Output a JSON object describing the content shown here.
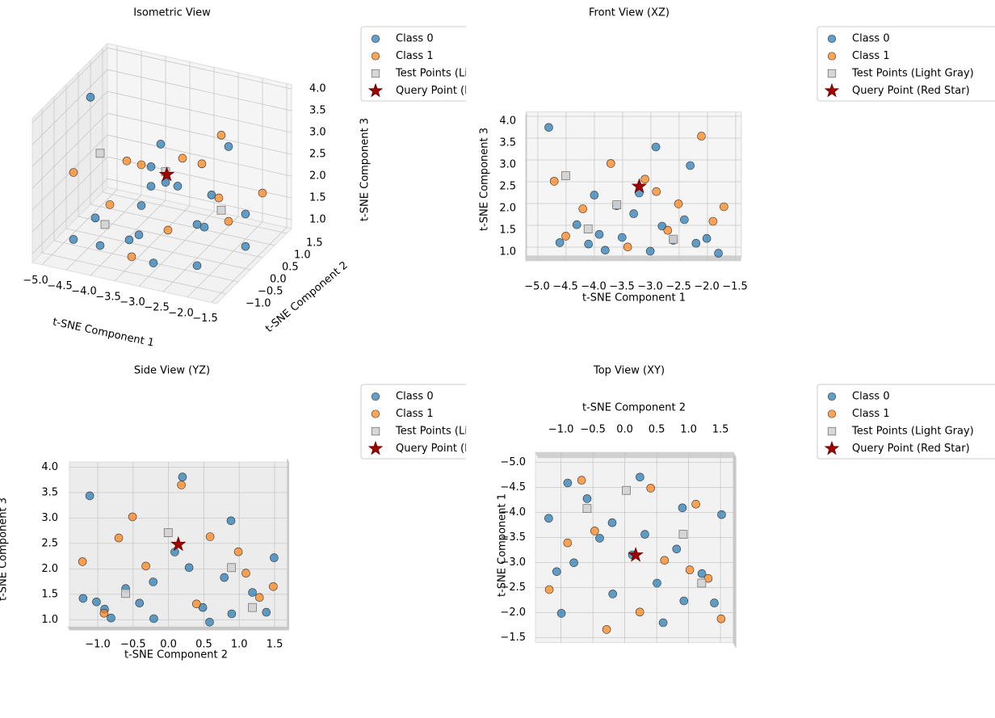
{
  "chart_data": {
    "type": "scatter3d",
    "xlabel": "t-SNE Component 1",
    "ylabel": "t-SNE Component 2",
    "zlabel": "t-SNE Component 3",
    "views": [
      {
        "title": "Isometric View"
      },
      {
        "title": "Front View (XZ)"
      },
      {
        "title": "Side View (YZ)"
      },
      {
        "title": "Top View (XY)"
      }
    ],
    "xlim": [
      -5.2,
      -1.4
    ],
    "ylim": [
      -1.4,
      1.7
    ],
    "zlim": [
      0.8,
      4.1
    ],
    "xticks": [
      {
        "value": -5,
        "label": "−5.0"
      },
      {
        "value": -4.5,
        "label": "−4.5"
      },
      {
        "value": -4,
        "label": "−4.0"
      },
      {
        "value": -3.5,
        "label": "−3.5"
      },
      {
        "value": -3,
        "label": "−3.0"
      },
      {
        "value": -2.5,
        "label": "−2.5"
      },
      {
        "value": -2,
        "label": "−2.0"
      },
      {
        "value": -1.5,
        "label": "−1.5"
      }
    ],
    "yticks": [
      {
        "value": -1,
        "label": "−1.0"
      },
      {
        "value": -0.5,
        "label": "−0.5"
      },
      {
        "value": 0,
        "label": "0.0"
      },
      0.5,
      {
        "value": 1,
        "label": "1.0"
      },
      1.5
    ],
    "zticks": [
      {
        "value": 1,
        "label": "1.0"
      },
      1.5,
      {
        "value": 2,
        "label": "2.0"
      },
      2.5,
      {
        "value": 3,
        "label": "3.0"
      },
      3.5,
      {
        "value": 4,
        "label": "4.0"
      }
    ],
    "grid": true,
    "series": [
      {
        "name": "Class 0",
        "color": "#1f77b4",
        "marker": "circle",
        "x": [
          -4.6,
          -4.3,
          -4.1,
          -3.9,
          -3.6,
          -3.5,
          -3.3,
          -3.2,
          -3.0,
          -2.8,
          -2.6,
          -2.4,
          -2.2,
          -2.0,
          -1.8,
          -4.8,
          -2.9,
          -4.0,
          -3.8,
          -2.3
        ],
        "y": [
          -0.9,
          -0.6,
          0.9,
          -1.2,
          0.3,
          -0.4,
          0.8,
          0.1,
          -0.8,
          1.2,
          0.5,
          -0.2,
          1.4,
          -1.0,
          0.6,
          0.2,
          -1.1,
          1.5,
          -0.2,
          0.9
        ],
        "z": [
          1.2,
          1.6,
          1.1,
          1.4,
          2.0,
          1.3,
          1.8,
          2.3,
          1.0,
          1.5,
          1.2,
          1.7,
          1.1,
          1.3,
          0.9,
          3.8,
          3.4,
          2.2,
          1.0,
          2.9
        ]
      },
      {
        "name": "Class 1",
        "color": "#ff7f0e",
        "marker": "circle",
        "x": [
          -4.7,
          -4.2,
          -3.7,
          -3.1,
          -2.7,
          -2.5,
          -2.1,
          -1.9,
          -4.5,
          -3.4,
          -2.9,
          -1.7
        ],
        "y": [
          -0.7,
          1.1,
          -0.5,
          0.6,
          1.3,
          -1.2,
          0.2,
          1.5,
          0.4,
          -0.9,
          1.0,
          -0.3
        ],
        "z": [
          2.6,
          1.9,
          3.0,
          2.6,
          1.4,
          2.1,
          3.6,
          1.6,
          1.3,
          1.1,
          2.3,
          2.0
        ]
      },
      {
        "name": "Test Points (Light Gray)",
        "color": "#d3d3d3",
        "marker": "square",
        "x": [
          -4.1,
          -3.6,
          -2.6,
          -4.5
        ],
        "y": [
          -0.6,
          0.9,
          1.2,
          0.0
        ],
        "z": [
          1.5,
          2.0,
          1.2,
          2.7
        ]
      },
      {
        "name": "Query Point (Red Star)",
        "color": "#a00000",
        "marker": "star",
        "x": [
          -3.2
        ],
        "y": [
          0.15
        ],
        "z": [
          2.45
        ]
      }
    ]
  }
}
